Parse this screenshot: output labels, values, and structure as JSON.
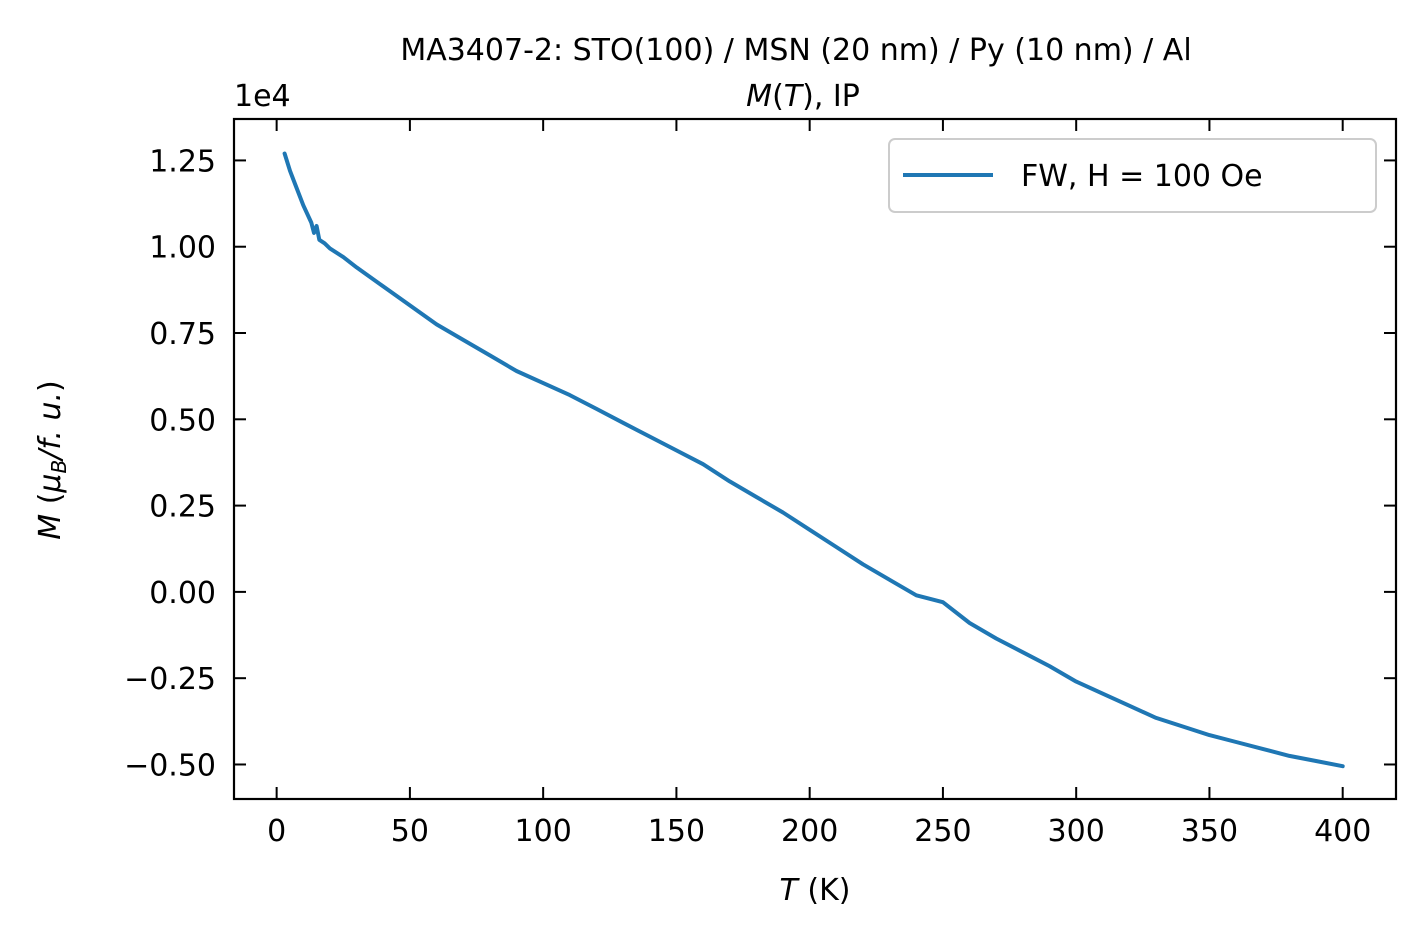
{
  "chart_data": {
    "type": "line",
    "title_line1": "MA3407-2: STO(100)  / MSN (20 nm) / Py (10 nm) / Al",
    "title_line2": {
      "italic": "M",
      "paren_open": "(",
      "italic2": "T",
      "rest": "), IP"
    },
    "offset_text": "1e4",
    "xlabel": {
      "italic": "T",
      "rest": " (K)"
    },
    "ylabel": {
      "italic": "M",
      "paren_open": " (",
      "mu": "μ",
      "sub": "B",
      "slash": "/",
      "fu": "f. u.",
      "paren_close": ")"
    },
    "xlim": [
      -16,
      420
    ],
    "ylim": [
      -0.6,
      1.37
    ],
    "xticks": [
      0,
      50,
      100,
      150,
      200,
      250,
      300,
      350,
      400
    ],
    "yticks": [
      1.25,
      1.0,
      0.75,
      0.5,
      0.25,
      0.0,
      -0.25,
      -0.5
    ],
    "ytick_labels": [
      "1.25",
      "1.00",
      "0.75",
      "0.50",
      "0.25",
      "0.00",
      "−0.25",
      "−0.50"
    ],
    "grid": false,
    "legend_position": "top-right",
    "series": [
      {
        "name": "FW, H = 100 Oe",
        "color": "#1f77b4",
        "x": [
          3,
          5,
          7,
          10,
          13,
          14,
          15,
          16,
          18,
          20,
          25,
          30,
          40,
          50,
          60,
          70,
          80,
          90,
          100,
          110,
          120,
          130,
          140,
          150,
          160,
          170,
          180,
          190,
          200,
          210,
          220,
          230,
          240,
          250,
          260,
          270,
          280,
          290,
          300,
          310,
          320,
          330,
          340,
          350,
          360,
          370,
          380,
          390,
          400
        ],
        "y": [
          1.27,
          1.22,
          1.18,
          1.12,
          1.07,
          1.04,
          1.06,
          1.02,
          1.01,
          0.995,
          0.97,
          0.94,
          0.885,
          0.83,
          0.775,
          0.73,
          0.685,
          0.64,
          0.605,
          0.57,
          0.53,
          0.49,
          0.45,
          0.41,
          0.37,
          0.32,
          0.275,
          0.23,
          0.18,
          0.13,
          0.08,
          0.035,
          -0.01,
          -0.03,
          -0.09,
          -0.135,
          -0.175,
          -0.215,
          -0.26,
          -0.295,
          -0.33,
          -0.365,
          -0.39,
          -0.415,
          -0.435,
          -0.455,
          -0.475,
          -0.49,
          -0.505
        ]
      }
    ]
  }
}
